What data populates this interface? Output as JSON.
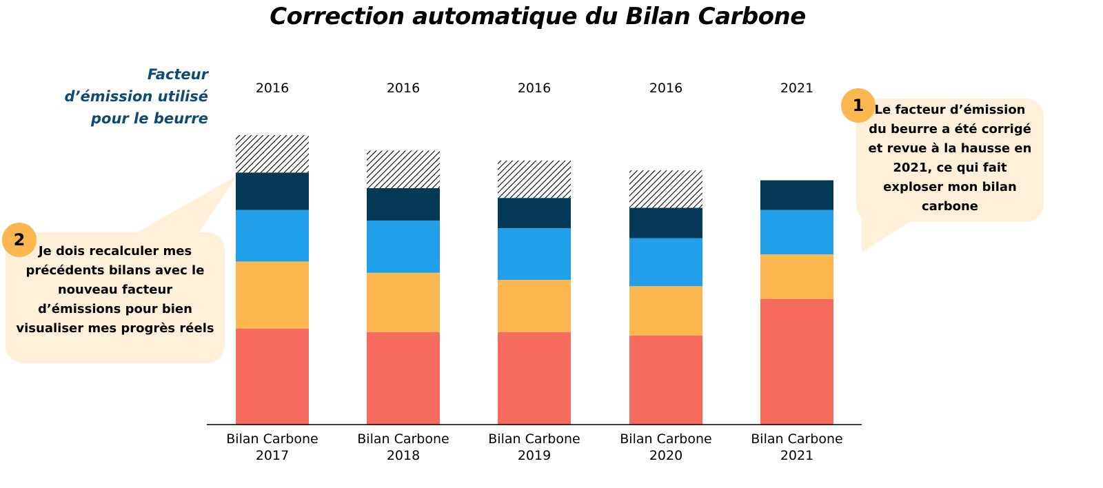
{
  "title": "Correction automatique du Bilan Carbone",
  "factor_label_lines": [
    "Facteur",
    "d’émission utilisé",
    "pour le beurre"
  ],
  "callouts": [
    {
      "number": "1",
      "lines": [
        "Le facteur d’émission",
        "du beurre a été corrigé",
        "et revue à la hausse en",
        "2021, ce qui fait",
        "exploser mon bilan",
        "carbone"
      ]
    },
    {
      "number": "2",
      "lines": [
        "Je dois recalculer mes",
        "précédents bilans avec le",
        "nouveau facteur",
        "d’émissions pour bien",
        "visualiser mes progrès réels"
      ]
    }
  ],
  "chart_data": {
    "type": "bar",
    "stacked": true,
    "categories": [
      [
        "Bilan Carbone",
        "2017"
      ],
      [
        "Bilan Carbone",
        "2018"
      ],
      [
        "Bilan Carbone",
        "2019"
      ],
      [
        "Bilan Carbone",
        "2020"
      ],
      [
        "Bilan Carbone",
        "2021"
      ]
    ],
    "factor_year": [
      "2016",
      "2016",
      "2016",
      "2016",
      "2021"
    ],
    "series": [
      {
        "color": "#f76b5f",
        "values": [
          136,
          131,
          131,
          126,
          178
        ]
      },
      {
        "color": "#fdb750",
        "values": [
          95,
          84,
          74,
          70,
          63
        ]
      },
      {
        "color": "#229fea",
        "values": [
          73,
          74,
          73,
          68,
          63
        ]
      },
      {
        "color": "#043a57",
        "values": [
          53,
          46,
          43,
          43,
          42
        ]
      },
      {
        "pattern": "hatched",
        "color": "#000000",
        "values": [
          53,
          53,
          53,
          53,
          0
        ]
      }
    ],
    "ylim": [
      0,
      410
    ],
    "legend": "none",
    "grid": false
  }
}
